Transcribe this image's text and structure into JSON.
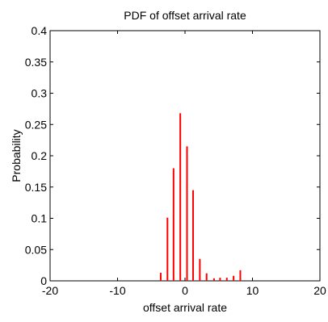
{
  "chart_data": {
    "type": "bar",
    "title": "PDF of offset arrival rate",
    "xlabel": "offset arrival rate",
    "ylabel": "Probability",
    "xlim": [
      -20,
      20
    ],
    "ylim": [
      0,
      0.4
    ],
    "xticks": [
      -20,
      -10,
      0,
      10,
      20
    ],
    "xtick_labels": [
      "-20",
      "-10",
      "0",
      "10",
      "20"
    ],
    "yticks": [
      0,
      0.05,
      0.1,
      0.15,
      0.2,
      0.25,
      0.3,
      0.35,
      0.4
    ],
    "ytick_labels": [
      "0",
      "0.05",
      "0.1",
      "0.15",
      "0.2",
      "0.25",
      "0.3",
      "0.35",
      "0.4"
    ],
    "grid": false,
    "bar_color": "#ff0000",
    "series": [
      {
        "x": [
          -3.6,
          -2.6,
          -1.7,
          -0.7,
          0.3,
          1.2,
          2.2,
          3.2,
          4.3,
          5.2,
          6.2,
          7.2,
          8.2
        ],
        "values": [
          0.013,
          0.101,
          0.18,
          0.268,
          0.215,
          0.145,
          0.035,
          0.012,
          0.004,
          0.005,
          0.005,
          0.008,
          0.017
        ]
      }
    ]
  }
}
